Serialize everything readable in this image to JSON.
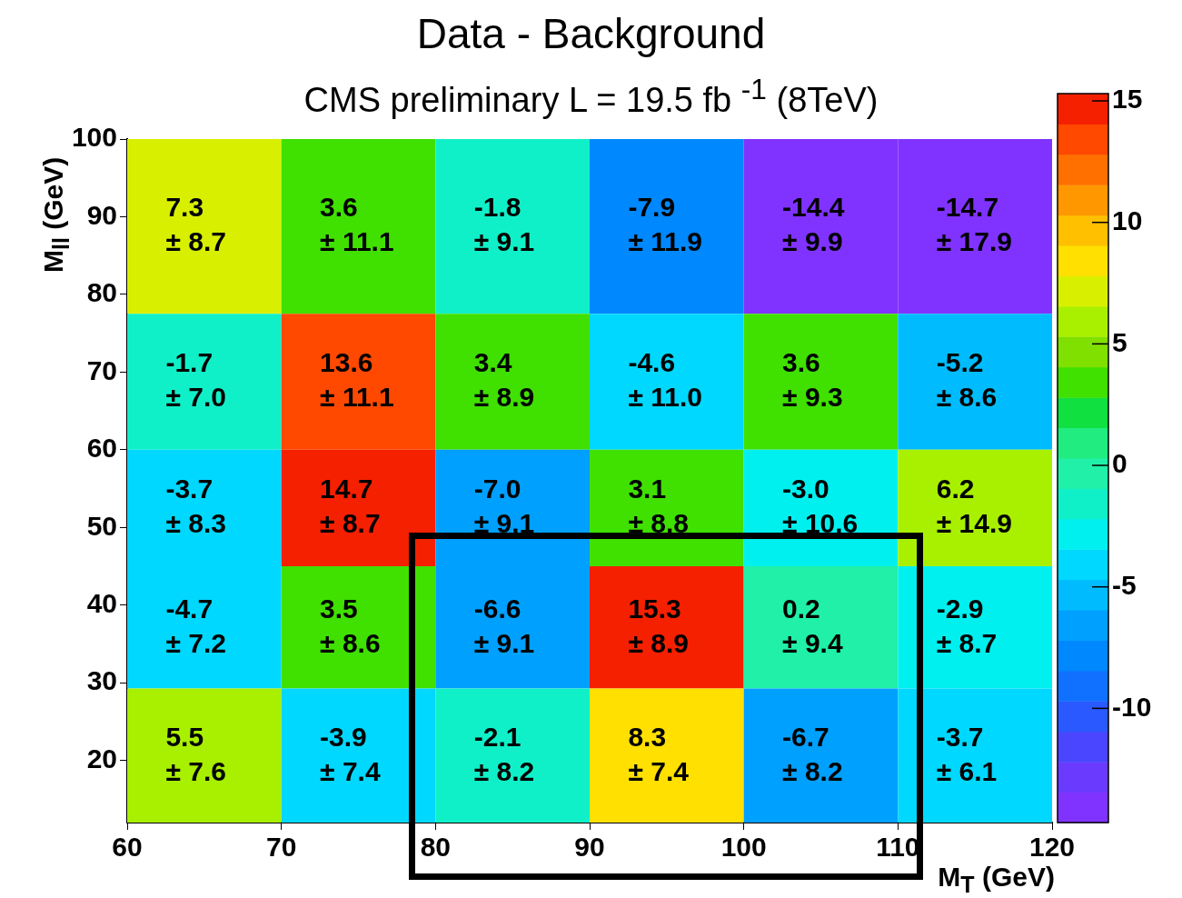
{
  "chart_data": {
    "type": "heatmap",
    "title": "Data - Background",
    "subtitle": "CMS preliminary L = 19.5 fb $^{-1}$ (8TeV)",
    "xlabel": "M$_{T}$ (GeV)",
    "ylabel": "M$_{ll}$ (GeV)",
    "x": [
      65,
      75,
      85,
      95,
      105,
      115
    ],
    "y": [
      87.5,
      67.5,
      52.5,
      37.5,
      21
    ],
    "xlim": [
      60,
      120
    ],
    "xticks": [
      60,
      70,
      80,
      90,
      100,
      110,
      120
    ],
    "ylim": [
      12,
      100
    ],
    "yticks": [
      20,
      30,
      40,
      50,
      60,
      70,
      80,
      90,
      100
    ],
    "cells": [
      [
        7.3,
        3.6,
        -1.8,
        -7.9,
        -14.4,
        -14.7
      ],
      [
        -1.7,
        13.6,
        3.4,
        -4.6,
        3.6,
        -5.2
      ],
      [
        -3.7,
        14.7,
        -7.0,
        3.1,
        -3.0,
        6.2
      ],
      [
        -4.7,
        3.5,
        -6.6,
        15.3,
        0.2,
        -2.9
      ],
      [
        5.5,
        -3.9,
        -2.1,
        8.3,
        -6.7,
        -3.7
      ]
    ],
    "cell_labels": [
      [
        "7.3\n± 8.7",
        "3.6\n± 11.1",
        "-1.8\n± 9.1",
        "-7.9\n± 11.9",
        "-14.4\n± 9.9",
        "-14.7\n± 17.9"
      ],
      [
        "-1.7\n± 7.0",
        "13.6\n± 11.1",
        "3.4\n± 8.9",
        "-4.6\n± 11.0",
        "3.6\n± 9.3",
        "-5.2\n± 8.6"
      ],
      [
        "-3.7\n± 8.3",
        "14.7\n± 8.7",
        "-7.0\n± 9.1",
        "3.1\n± 8.8",
        "-3.0\n± 10.6",
        "6.2\n± 14.9"
      ],
      [
        "-4.7\n± 7.2",
        "3.5\n± 8.6",
        "-6.6\n± 9.1",
        "15.3\n± 8.9",
        "0.2\n± 9.4",
        "-2.9\n± 8.7"
      ],
      [
        "5.5\n± 7.6",
        "-3.9\n± 7.4",
        "-2.1\n± 8.2",
        "8.3\n± 7.4",
        "-6.7\n± 8.2",
        "-3.7\n± 6.1"
      ]
    ],
    "clim": [
      -14.7,
      15.3
    ],
    "cticks": [
      -10,
      -5,
      0,
      5,
      10,
      15
    ],
    "colors": [
      "#8033ff",
      "#6a3aff",
      "#4a46ff",
      "#2a5aff",
      "#1070ff",
      "#0088ff",
      "#00a0ff",
      "#00bcff",
      "#00d8ff",
      "#00f0f0",
      "#10f0c8",
      "#20f0a8",
      "#20ec80",
      "#10e040",
      "#40e000",
      "#80e000",
      "#a8f000",
      "#d8f000",
      "#ffe000",
      "#ffc000",
      "#ff9800",
      "#ff7000",
      "#ff4800",
      "#f52000"
    ],
    "grid": false
  }
}
